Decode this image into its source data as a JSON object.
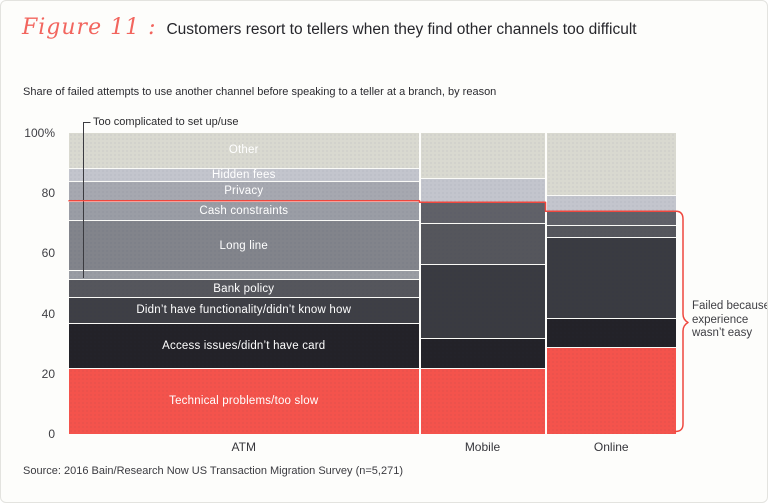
{
  "title": {
    "figure_label": "Figure 11 :",
    "text": "Customers resort to tellers when they find other channels too difficult"
  },
  "subtitle": "Share of failed attempts to use another channel before speaking to a teller at a branch, by reason",
  "source": "Source: 2016 Bain/Research Now US Transaction Migration Survey (n=5,271)",
  "annotations": {
    "too_complicated": "Too complicated to set up/use",
    "failed_brace": "Failed because experience wasn’t easy"
  },
  "colors": {
    "figure_label": "#f2655e",
    "red_line": "#ef473e",
    "annotation_line": "#3b3b40",
    "page_background": "#fdfdfb"
  },
  "chart_data": {
    "type": "bar",
    "subtype": "stacked-variable-width",
    "title": "Share of failed attempts to use another channel before speaking to a teller at a branch, by reason",
    "xlabel": "",
    "ylabel": "",
    "ylim": [
      0,
      100
    ],
    "grid": false,
    "legend_position": "none",
    "yticks": [
      {
        "label": "100%",
        "value": 100
      },
      {
        "label": "80",
        "value": 80
      },
      {
        "label": "60",
        "value": 60
      },
      {
        "label": "40",
        "value": 40
      },
      {
        "label": "20",
        "value": 20
      },
      {
        "label": "0",
        "value": 0
      }
    ],
    "categories": [
      "ATM",
      "Mobile",
      "Online"
    ],
    "bars": [
      {
        "category": "ATM",
        "left_frac": 0.0,
        "width_frac": 0.5758,
        "not_easy_top": 77.5,
        "segments": [
          {
            "label": "Technical problems/too slow",
            "value": 22,
            "color": "#f4534c"
          },
          {
            "label": "Access issues/didn’t have card",
            "value": 15,
            "color": "#232228"
          },
          {
            "label": "Didn’t have functionality/didn’t know how",
            "value": 8.5,
            "color": "#3e3f45"
          },
          {
            "label": "Bank policy",
            "value": 6,
            "color": "#55565c"
          },
          {
            "label": "",
            "annotation": "Too complicated to set up/use",
            "value": 3,
            "color": "#999ca3"
          },
          {
            "label": "Long line",
            "value": 16.5,
            "color": "#82848b"
          },
          {
            "label": "Cash constraints",
            "value": 6.5,
            "color": "#9a9da5"
          },
          {
            "label": "Privacy",
            "value": 6.5,
            "color": "#a6a8b0"
          },
          {
            "label": "Hidden fees",
            "value": 4.5,
            "color": "#c3c5cd"
          },
          {
            "label": "Other",
            "value": 11.5,
            "color": "#d9d9d0"
          }
        ]
      },
      {
        "category": "Mobile",
        "left_frac": 0.5791,
        "width_frac": 0.2043,
        "not_easy_top": 77,
        "segments": [
          {
            "label": "",
            "value": 22,
            "color": "#f4534c"
          },
          {
            "label": "",
            "value": 10,
            "color": "#232228"
          },
          {
            "label": "",
            "value": 24.5,
            "color": "#3a3b41"
          },
          {
            "label": "",
            "value": 13.5,
            "color": "#55565c"
          },
          {
            "label": "",
            "value": 7,
            "color": "#606168"
          },
          {
            "label": "",
            "value": 8,
            "color": "#c3c5cd"
          },
          {
            "label": "",
            "value": 15,
            "color": "#d9d9d0"
          }
        ]
      },
      {
        "category": "Online",
        "left_frac": 0.7867,
        "width_frac": 0.2133,
        "not_easy_top": 74,
        "segments": [
          {
            "label": "",
            "value": 29,
            "color": "#f4534c"
          },
          {
            "label": "",
            "value": 9.5,
            "color": "#232228"
          },
          {
            "label": "",
            "value": 27,
            "color": "#3a3b41"
          },
          {
            "label": "",
            "value": 4,
            "color": "#55565c"
          },
          {
            "label": "",
            "value": 4.5,
            "color": "#606168"
          },
          {
            "label": "",
            "value": 5.5,
            "color": "#c3c5cd"
          },
          {
            "label": "",
            "value": 20.5,
            "color": "#d9d9d0"
          }
        ]
      }
    ]
  }
}
